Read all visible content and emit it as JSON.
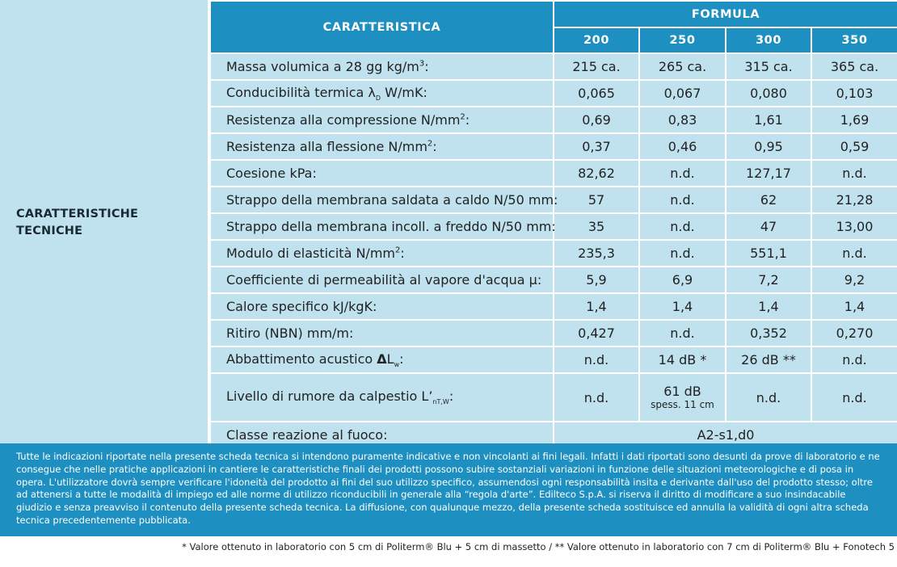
{
  "section_label": [
    "CARATTERISTICHE",
    "TECNICHE"
  ],
  "header": {
    "caratteristica": "CARATTERISTICA",
    "formula": "FORMULA",
    "formulas": [
      "200",
      "250",
      "300",
      "350"
    ]
  },
  "rows": [
    {
      "label": "Massa volumica a 28 gg kg/m³:",
      "values": [
        "215 ca.",
        "265 ca.",
        "315 ca.",
        "365 ca."
      ]
    },
    {
      "label": "Conducibilità termica λD W/mK:",
      "values": [
        "0,065",
        "0,067",
        "0,080",
        "0,103"
      ]
    },
    {
      "label": "Resistenza alla compressione N/mm²:",
      "values": [
        "0,69",
        "0,83",
        "1,61",
        "1,69"
      ]
    },
    {
      "label": "Resistenza alla flessione N/mm²:",
      "values": [
        "0,37",
        "0,46",
        "0,95",
        "0,59"
      ]
    },
    {
      "label": "Coesione kPa:",
      "values": [
        "82,62",
        "n.d.",
        "127,17",
        "n.d."
      ]
    },
    {
      "label": "Strappo della membrana saldata a caldo N/50 mm:",
      "values": [
        "57",
        "n.d.",
        "62",
        "21,28"
      ]
    },
    {
      "label": "Strappo della membrana incoll. a freddo N/50 mm:",
      "values": [
        "35",
        "n.d.",
        "47",
        "13,00"
      ]
    },
    {
      "label": "Modulo di elasticità N/mm²:",
      "values": [
        "235,3",
        "n.d.",
        "551,1",
        "n.d."
      ]
    },
    {
      "label": "Coefficiente di permeabilità al vapore d'acqua μ:",
      "values": [
        "5,9",
        "6,9",
        "7,2",
        "9,2"
      ]
    },
    {
      "label": "Calore specifico kJ/kgK:",
      "values": [
        "1,4",
        "1,4",
        "1,4",
        "1,4"
      ]
    },
    {
      "label": "Ritiro (NBN) mm/m:",
      "values": [
        "0,427",
        "n.d.",
        "0,352",
        "0,270"
      ]
    },
    {
      "label": "Abbattimento acustico ΔLw:",
      "values": [
        "n.d.",
        "14 dB *",
        "26 dB **",
        "n.d."
      ]
    }
  ],
  "rumore_row": {
    "label": "Livello di rumore da calpestio L'nT,W:",
    "v200": "n.d.",
    "v250_main": "61 dB",
    "v250_sub": "spess. 11 cm",
    "v300": "n.d.",
    "v350": "n.d."
  },
  "fuoco_row": {
    "label": "Classe reazione al fuoco:",
    "value": "A2-s1,d0"
  },
  "disclaimer": "Tutte le indicazioni riportate nella presente scheda tecnica si intendono puramente indicative e non vincolanti ai fini legali. Infatti i dati riportati sono desunti da prove di laboratorio e ne consegue che nelle pratiche applicazioni in cantiere le caratteristiche finali dei prodotti possono subire sostanziali variazioni in funzione delle situazioni meteorologiche e di posa in opera. L'utilizzatore dovrà sempre verificare l'idoneità del prodotto ai fini del suo utilizzo specifico, assumendosi ogni responsabilità insita e derivante dall'uso del prodotto stesso; oltre ad attenersi a tutte le modalità di impiego ed alle norme di utilizzo riconducibili in generale alla “regola d'arte”. Edilteco S.p.A. si riserva il diritto di modificare a suo insindacabile giudizio e senza preavviso il contenuto della presente scheda tecnica. La diffusione, con qualunque mezzo, della presente scheda sostituisce ed annulla la validità di ogni altra scheda tecnica precedentemente pubblicata.",
  "footnote": "* Valore ottenuto in laboratorio con 5 cm di Politerm® Blu + 5 cm di massetto / ** Valore ottenuto in laboratorio con 7 cm di Politerm® Blu + Fonotech 5"
}
